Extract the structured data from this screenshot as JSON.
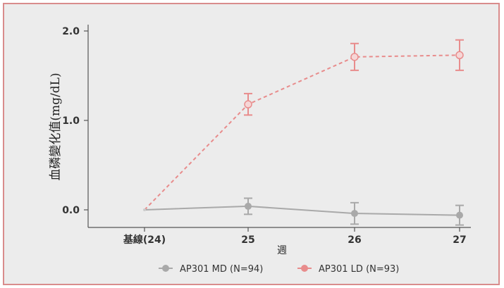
{
  "chart_data": {
    "type": "line",
    "title": "",
    "xlabel": "週",
    "ylabel": "血磷變化值(mg/dL)",
    "categories": [
      "基線(24)",
      "25",
      "26",
      "27"
    ],
    "ylim": [
      -0.2,
      2.1
    ],
    "yticks": [
      "2.0",
      "1.0",
      "0.0"
    ],
    "ytick_values": [
      2.0,
      1.0,
      0.0
    ],
    "grid": false,
    "legend_position": "bottom",
    "series": [
      {
        "name": "AP301 MD (N=94)",
        "color": "#a9a9a9",
        "values": [
          0.0,
          0.04,
          -0.04,
          -0.06
        ],
        "errors": [
          null,
          0.09,
          0.12,
          0.11
        ]
      },
      {
        "name": "AP301 LD (N=93)",
        "color": "#e88c8c",
        "values": [
          0.0,
          1.18,
          1.71,
          1.73
        ],
        "errors": [
          null,
          0.12,
          0.15,
          0.17
        ]
      }
    ]
  }
}
